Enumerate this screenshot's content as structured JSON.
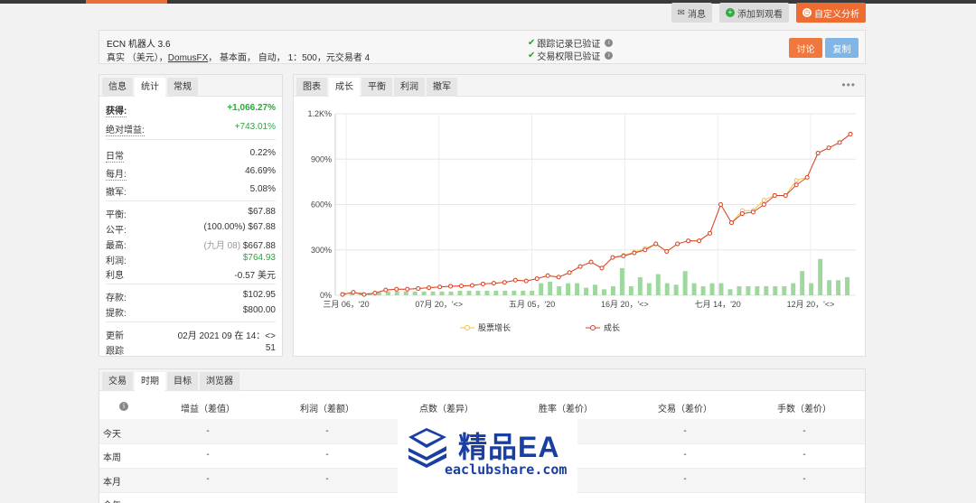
{
  "toolbar": {
    "message": "消息",
    "add_watch": "添加到观看",
    "custom_analysis": "自定义分析"
  },
  "account": {
    "title": "ECN 机器人 3.6",
    "type": "真实 （美元），",
    "broker": "DomusFX",
    "details": "， 基本面， 自动， 1：500，元交易者 4",
    "verify1": "跟踪记录已验证",
    "verify2": "交易权限已验证",
    "discuss": "讨论",
    "copy": "复制"
  },
  "stats": {
    "tabs": [
      "信息",
      "统计",
      "常规"
    ],
    "gain_label": "获得:",
    "gain_value": "+1,066.27%",
    "abs_gain_label": "绝对增益:",
    "abs_gain_value": "+743.01%",
    "daily_label": "日常",
    "daily_value": "0.22%",
    "monthly_label": "每月:",
    "monthly_value": "46.69%",
    "drawdown_label": "撤军:",
    "drawdown_value": "5.08%",
    "balance_label": "平衡:",
    "balance_value": "$67.88",
    "equity_label": "公平:",
    "equity_pct": "(100.00%)",
    "equity_value": "$67.88",
    "highest_label": "最高:",
    "highest_date": "(九月 08)",
    "highest_value": "$667.88",
    "profit_label": "利润:",
    "profit_value": "$764.93",
    "interest_label": "利息",
    "interest_value": "-0.57 美元",
    "deposits_label": "存款:",
    "deposits_value": "$102.95",
    "withdrawals_label": "提款:",
    "withdrawals_value": "$800.00",
    "updated_label": "更新",
    "updated_value": "02月 2021 09 在 14：<>",
    "tracking_label": "跟踪",
    "tracking_value": "51"
  },
  "chart_tabs": [
    "图表",
    "成长",
    "平衡",
    "利润",
    "撤军"
  ],
  "chart_more": "•••",
  "chart_data": {
    "type": "line",
    "x_ticks": [
      "三月 06，'20",
      "07月 20，'<>",
      "五月 05，'20",
      "16月 20，'<>",
      "七月 14，'20",
      "12月 20，'<>"
    ],
    "y_ticks": [
      "0%",
      "300%",
      "600%",
      "900%",
      "1.2K%"
    ],
    "ylim": [
      0,
      1200
    ],
    "legend": [
      "股票增长",
      "成长"
    ],
    "colors": {
      "equity": "#f5c342",
      "growth": "#d9412b",
      "bars": "#9fd89f"
    },
    "growth": [
      5,
      20,
      5,
      15,
      35,
      40,
      40,
      45,
      50,
      55,
      60,
      62,
      65,
      75,
      80,
      85,
      100,
      95,
      110,
      130,
      120,
      150,
      190,
      220,
      180,
      250,
      260,
      280,
      300,
      340,
      290,
      340,
      360,
      360,
      410,
      600,
      480,
      540,
      550,
      600,
      660,
      660,
      730,
      780,
      940,
      975,
      1010,
      1066
    ],
    "equity": [
      5,
      20,
      5,
      15,
      35,
      40,
      40,
      45,
      50,
      55,
      60,
      62,
      65,
      75,
      80,
      85,
      100,
      95,
      110,
      130,
      120,
      150,
      190,
      220,
      180,
      250,
      265,
      285,
      310,
      340,
      290,
      340,
      360,
      360,
      410,
      600,
      480,
      560,
      560,
      630,
      660,
      660,
      760,
      780,
      940,
      975,
      1010,
      1066
    ],
    "bars": [
      20,
      15,
      20,
      15,
      20,
      25,
      25,
      25,
      25,
      25,
      25,
      25,
      25,
      30,
      30,
      30,
      30,
      30,
      30,
      30,
      30,
      30,
      80,
      90,
      60,
      80,
      80,
      50,
      70,
      40,
      60,
      180,
      60,
      120,
      80,
      140,
      80,
      70,
      160,
      80,
      60,
      80,
      80,
      40,
      60,
      60,
      60,
      60,
      60,
      60,
      80,
      160,
      80,
      240,
      100,
      100,
      120
    ]
  },
  "table": {
    "tabs": [
      "交易",
      "时期",
      "目标",
      "浏览器"
    ],
    "headers": [
      "增益（差值）",
      "利润（差额）",
      "点数（差异）",
      "胜率（差价）",
      "交易（差价）",
      "手数（差价）"
    ],
    "rows": [
      "今天",
      "本周",
      "本月",
      "今年"
    ],
    "dash": "-"
  },
  "watermark": {
    "title": "精品EA",
    "url": "eaclubshare.com"
  }
}
